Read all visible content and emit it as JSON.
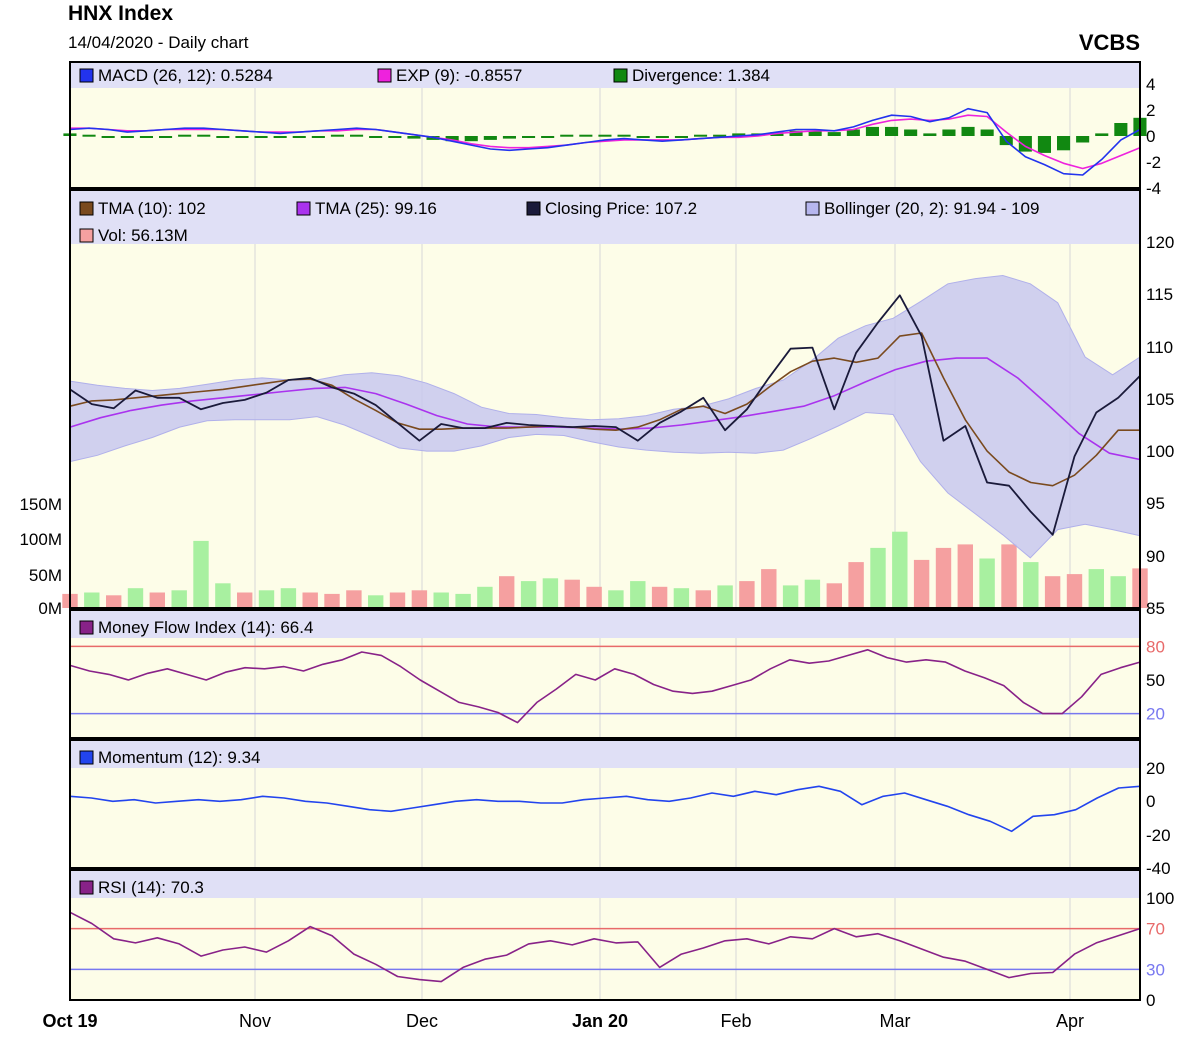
{
  "header": {
    "title": "HNX Index",
    "subtitle": "14/04/2020 - Daily chart",
    "brand": "VCBS"
  },
  "colors": {
    "panel_bg": "#fdfde8",
    "legend_bg": "#e0e0f6",
    "grid": "#d8d8d8",
    "macd": "#2233ee",
    "exp": "#ee22dd",
    "divergence": "#118811",
    "tma10": "#7a4a1e",
    "tma25": "#aa33ee",
    "close": "#1a1a3a",
    "bollinger_fill": "#c8c8ee",
    "vol_up": "#a8f0a0",
    "vol_down": "#f5a0a0",
    "mfi": "#882288",
    "momentum": "#2244ee",
    "rsi": "#882288",
    "upper_line": "#e86a6a",
    "lower_line": "#7878f0"
  },
  "chart_data": [
    {
      "type": "line",
      "panel": "macd",
      "legend": [
        {
          "label": "MACD (26, 12): 0.5284",
          "color": "#2233ee"
        },
        {
          "label": "EXP (9): -0.8557",
          "color": "#ee22dd"
        },
        {
          "label": "Divergence: 1.384",
          "color": "#118811"
        }
      ],
      "ylim": [
        -4,
        4
      ],
      "yticks": [
        "4",
        "2",
        "0",
        "-2",
        "-4"
      ],
      "series": [
        {
          "name": "MACD (26, 12)",
          "color": "#2233ee",
          "values": [
            0.5,
            0.6,
            0.5,
            0.3,
            0.4,
            0.5,
            0.6,
            0.6,
            0.5,
            0.4,
            0.3,
            0.2,
            0.3,
            0.4,
            0.5,
            0.6,
            0.5,
            0.3,
            0.1,
            -0.1,
            -0.4,
            -0.7,
            -1.0,
            -1.1,
            -1.0,
            -0.9,
            -0.7,
            -0.5,
            -0.3,
            -0.2,
            -0.3,
            -0.4,
            -0.3,
            -0.2,
            -0.1,
            0.0,
            0.1,
            0.3,
            0.5,
            0.5,
            0.4,
            0.7,
            1.2,
            1.6,
            1.5,
            1.1,
            1.4,
            2.1,
            1.8,
            -0.4,
            -1.6,
            -2.2,
            -2.9,
            -3.0,
            -1.8,
            -0.3,
            0.5
          ]
        },
        {
          "name": "EXP (9)",
          "color": "#ee22dd",
          "values": [
            0.6,
            0.6,
            0.5,
            0.4,
            0.4,
            0.5,
            0.5,
            0.5,
            0.5,
            0.4,
            0.3,
            0.3,
            0.3,
            0.4,
            0.4,
            0.5,
            0.5,
            0.3,
            0.1,
            -0.1,
            -0.3,
            -0.6,
            -0.8,
            -0.9,
            -0.9,
            -0.8,
            -0.7,
            -0.5,
            -0.4,
            -0.3,
            -0.3,
            -0.3,
            -0.3,
            -0.2,
            -0.1,
            -0.1,
            0.0,
            0.2,
            0.3,
            0.4,
            0.4,
            0.5,
            0.9,
            1.2,
            1.3,
            1.2,
            1.3,
            1.6,
            1.5,
            0.3,
            -0.8,
            -1.5,
            -2.1,
            -2.5,
            -2.1,
            -1.5,
            -0.9
          ]
        },
        {
          "name": "Divergence",
          "color": "#118811",
          "values": [
            0.2,
            0.1,
            0.0,
            -0.1,
            -0.1,
            0.0,
            0.1,
            0.1,
            0.0,
            0.0,
            0.0,
            -0.1,
            0.0,
            0.0,
            0.1,
            0.1,
            0.0,
            -0.1,
            -0.2,
            -0.3,
            -0.4,
            -0.4,
            -0.3,
            -0.2,
            -0.1,
            0.0,
            0.1,
            0.1,
            0.1,
            0.1,
            0.0,
            -0.1,
            0.0,
            0.1,
            0.1,
            0.2,
            0.2,
            0.3,
            0.4,
            0.4,
            0.3,
            0.5,
            0.7,
            0.7,
            0.5,
            0.2,
            0.5,
            0.7,
            0.5,
            -0.7,
            -1.2,
            -1.3,
            -1.1,
            -0.5,
            0.2,
            1.0,
            1.4
          ]
        }
      ]
    },
    {
      "type": "line",
      "panel": "price",
      "legend": [
        {
          "label": "TMA (10): 102",
          "color": "#7a4a1e"
        },
        {
          "label": "TMA (25): 99.16",
          "color": "#aa33ee"
        },
        {
          "label": "Closing Price: 107.2",
          "color": "#1a1a3a"
        },
        {
          "label": "Bollinger (20, 2): 91.94 - 109",
          "color": "#b6b6ee"
        },
        {
          "label": "Vol: 56.13M",
          "color": "#f5a0a0"
        }
      ],
      "ylim": [
        85,
        120
      ],
      "yticks": [
        "120",
        "115",
        "110",
        "105",
        "100",
        "95",
        "90",
        "85"
      ],
      "vol_ticks": [
        "150M",
        "100M",
        "50M",
        "0M"
      ],
      "series": [
        {
          "name": "Closing Price",
          "color": "#1a1a3a",
          "values": [
            105.9,
            104.5,
            104.1,
            105.8,
            105.1,
            105.1,
            104.0,
            104.6,
            104.9,
            105.6,
            106.8,
            107.0,
            106.1,
            105.5,
            104.4,
            102.7,
            101.0,
            102.6,
            102.2,
            102.2,
            102.7,
            102.5,
            102.4,
            102.3,
            102.4,
            102.3,
            101.0,
            102.7,
            103.8,
            105.1,
            102.0,
            104.0,
            107.0,
            109.8,
            109.9,
            104.0,
            109.4,
            112.3,
            114.9,
            111.0,
            101.0,
            102.4,
            97.0,
            96.7,
            94.2,
            92.0,
            99.5,
            103.7,
            105.1,
            107.2
          ]
        },
        {
          "name": "TMA (10)",
          "color": "#7a4a1e",
          "values": [
            104.3,
            104.8,
            104.9,
            105.1,
            105.3,
            105.5,
            105.7,
            105.9,
            106.2,
            106.5,
            106.8,
            106.9,
            106.3,
            105.0,
            103.9,
            102.7,
            102.1,
            102.1,
            102.2,
            102.2,
            102.2,
            102.3,
            102.4,
            102.3,
            102.1,
            102.0,
            102.3,
            103.0,
            104.0,
            104.3,
            103.6,
            104.5,
            106.1,
            107.6,
            108.6,
            108.9,
            108.5,
            108.9,
            111.0,
            111.3,
            107.0,
            103.0,
            100.0,
            98.0,
            97.0,
            96.7,
            97.7,
            99.6,
            102.0,
            102.0
          ]
        },
        {
          "name": "TMA (25)",
          "color": "#aa33ee",
          "values": [
            102.3,
            103.2,
            103.9,
            104.4,
            104.8,
            105.1,
            105.4,
            105.7,
            106.0,
            106.1,
            105.5,
            104.5,
            103.4,
            102.6,
            102.3,
            102.3,
            102.3,
            102.2,
            102.1,
            102.2,
            102.5,
            102.9,
            103.3,
            103.8,
            104.3,
            105.3,
            106.6,
            107.8,
            108.6,
            108.9,
            108.9,
            107.0,
            104.4,
            101.7,
            99.8,
            99.2
          ]
        },
        {
          "name": "Bollinger upper",
          "color": "#b6b6ee",
          "values": [
            106.7,
            106.3,
            106.0,
            105.8,
            106.0,
            106.4,
            106.8,
            107.0,
            106.8,
            106.8,
            107.3,
            107.5,
            107.2,
            106.5,
            105.5,
            104.2,
            103.6,
            103.5,
            103.2,
            103.0,
            103.1,
            103.4,
            104.0,
            104.3,
            105.0,
            106.0,
            106.8,
            108.6,
            110.8,
            112.0,
            112.7,
            114.3,
            116.0,
            116.5,
            116.8,
            116.0,
            114.2,
            109.0,
            107.3,
            109.0
          ]
        },
        {
          "name": "Bollinger lower",
          "color": "#b6b6ee",
          "values": [
            99.0,
            99.6,
            100.5,
            101.3,
            102.3,
            102.9,
            103.0,
            103.0,
            103.0,
            103.3,
            102.5,
            101.4,
            100.3,
            100.0,
            100.0,
            100.5,
            101.3,
            101.6,
            101.5,
            100.9,
            100.4,
            100.1,
            99.9,
            99.8,
            99.9,
            99.8,
            100.1,
            101.2,
            102.4,
            103.7,
            103.5,
            99.0,
            96.0,
            94.0,
            92.0,
            89.8,
            92.5,
            93.0,
            92.5,
            91.9
          ]
        }
      ],
      "volume": [
        {
          "v": 20,
          "up": false
        },
        {
          "v": 22,
          "up": true
        },
        {
          "v": 18,
          "up": false
        },
        {
          "v": 28,
          "up": true
        },
        {
          "v": 22,
          "up": false
        },
        {
          "v": 25,
          "up": true
        },
        {
          "v": 95,
          "up": true
        },
        {
          "v": 35,
          "up": true
        },
        {
          "v": 22,
          "up": false
        },
        {
          "v": 25,
          "up": true
        },
        {
          "v": 28,
          "up": true
        },
        {
          "v": 22,
          "up": false
        },
        {
          "v": 20,
          "up": false
        },
        {
          "v": 25,
          "up": false
        },
        {
          "v": 18,
          "up": true
        },
        {
          "v": 22,
          "up": false
        },
        {
          "v": 25,
          "up": false
        },
        {
          "v": 22,
          "up": true
        },
        {
          "v": 20,
          "up": true
        },
        {
          "v": 30,
          "up": true
        },
        {
          "v": 45,
          "up": false
        },
        {
          "v": 38,
          "up": true
        },
        {
          "v": 42,
          "up": true
        },
        {
          "v": 40,
          "up": false
        },
        {
          "v": 30,
          "up": false
        },
        {
          "v": 25,
          "up": true
        },
        {
          "v": 38,
          "up": true
        },
        {
          "v": 30,
          "up": false
        },
        {
          "v": 28,
          "up": true
        },
        {
          "v": 25,
          "up": false
        },
        {
          "v": 32,
          "up": true
        },
        {
          "v": 38,
          "up": false
        },
        {
          "v": 55,
          "up": false
        },
        {
          "v": 32,
          "up": true
        },
        {
          "v": 40,
          "up": true
        },
        {
          "v": 35,
          "up": false
        },
        {
          "v": 65,
          "up": false
        },
        {
          "v": 85,
          "up": true
        },
        {
          "v": 108,
          "up": true
        },
        {
          "v": 68,
          "up": false
        },
        {
          "v": 85,
          "up": false
        },
        {
          "v": 90,
          "up": false
        },
        {
          "v": 70,
          "up": true
        },
        {
          "v": 90,
          "up": false
        },
        {
          "v": 65,
          "up": true
        },
        {
          "v": 45,
          "up": false
        },
        {
          "v": 48,
          "up": false
        },
        {
          "v": 55,
          "up": true
        },
        {
          "v": 45,
          "up": true
        },
        {
          "v": 56,
          "up": false
        }
      ]
    },
    {
      "type": "line",
      "panel": "mfi",
      "legend": [
        {
          "label": "Money Flow Index (14): 66.4",
          "color": "#882288"
        }
      ],
      "ylim": [
        0,
        100
      ],
      "yticks": [
        "80",
        "50",
        "20"
      ],
      "levels": [
        80,
        20
      ],
      "series": [
        {
          "name": "Money Flow Index (14)",
          "color": "#882288",
          "values": [
            63,
            58,
            55,
            50,
            56,
            60,
            55,
            50,
            57,
            61,
            60,
            62,
            58,
            64,
            68,
            75,
            72,
            62,
            50,
            40,
            30,
            26,
            21,
            12,
            30,
            42,
            55,
            50,
            60,
            55,
            46,
            40,
            38,
            40,
            45,
            50,
            60,
            68,
            65,
            67,
            72,
            77,
            70,
            66,
            68,
            66,
            58,
            52,
            45,
            30,
            20,
            20,
            35,
            55,
            61,
            66
          ]
        }
      ]
    },
    {
      "type": "line",
      "panel": "momentum",
      "legend": [
        {
          "label": "Momentum (12): 9.34",
          "color": "#2244ee"
        }
      ],
      "ylim": [
        -40,
        20
      ],
      "yticks": [
        "20",
        "0",
        "-20",
        "-40"
      ],
      "series": [
        {
          "name": "Momentum (12)",
          "color": "#2244ee",
          "values": [
            3,
            2,
            0,
            1,
            -1,
            0,
            1,
            0,
            1,
            3,
            2,
            0,
            -1,
            -3,
            -5,
            -6,
            -4,
            -2,
            0,
            1,
            0,
            0,
            -1,
            -1,
            1,
            2,
            3,
            1,
            0,
            2,
            5,
            3,
            6,
            4,
            7,
            9,
            6,
            -2,
            3,
            5,
            1,
            -3,
            -8,
            -12,
            -18,
            -9,
            -8,
            -5,
            2,
            8,
            9
          ]
        }
      ]
    },
    {
      "type": "line",
      "panel": "rsi",
      "legend": [
        {
          "label": "RSI (14): 70.3",
          "color": "#882288"
        }
      ],
      "ylim": [
        0,
        100
      ],
      "yticks": [
        "100",
        "70",
        "30",
        "0"
      ],
      "levels": [
        70,
        30
      ],
      "xlabels": [
        "Oct 19",
        "Nov",
        "Dec",
        "Jan 20",
        "Feb",
        "Mar",
        "Apr"
      ],
      "series": [
        {
          "name": "RSI (14)",
          "color": "#882288",
          "values": [
            86,
            75,
            60,
            56,
            61,
            55,
            43,
            49,
            52,
            47,
            58,
            72,
            63,
            45,
            35,
            23,
            20,
            18,
            32,
            40,
            44,
            55,
            58,
            54,
            60,
            56,
            57,
            32,
            45,
            51,
            58,
            60,
            55,
            62,
            60,
            70,
            62,
            65,
            58,
            50,
            42,
            38,
            30,
            22,
            26,
            27,
            45,
            56,
            63,
            70
          ]
        }
      ]
    }
  ]
}
